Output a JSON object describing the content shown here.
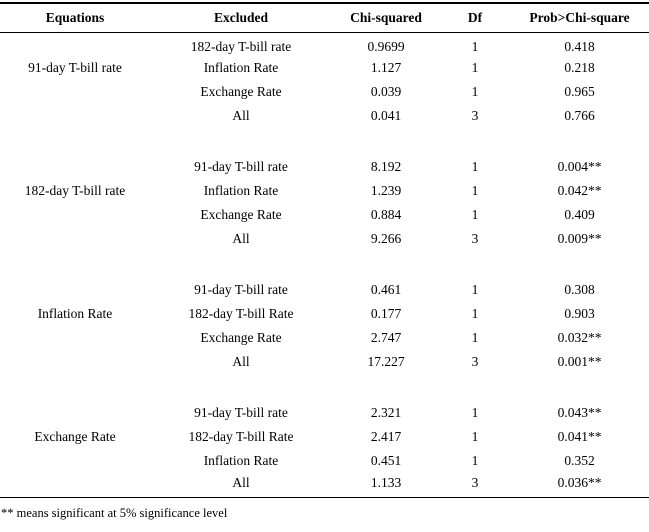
{
  "table": {
    "columns": [
      "Equations",
      "Excluded",
      "Chi-squared",
      "Df",
      "Prob>Chi-square"
    ],
    "blocks": [
      {
        "equation": "91-day T-bill rate",
        "rows": [
          {
            "excluded": "182-day T-bill rate",
            "chi_squared": "0.9699",
            "df": "1",
            "prob": "0.418"
          },
          {
            "excluded": "Inflation Rate",
            "chi_squared": "1.127",
            "df": "1",
            "prob": "0.218"
          },
          {
            "excluded": "Exchange Rate",
            "chi_squared": "0.039",
            "df": "1",
            "prob": "0.965"
          },
          {
            "excluded": "All",
            "chi_squared": "0.041",
            "df": "3",
            "prob": "0.766"
          }
        ]
      },
      {
        "equation": "182-day T-bill rate",
        "rows": [
          {
            "excluded": "91-day T-bill rate",
            "chi_squared": "8.192",
            "df": "1",
            "prob": "0.004**"
          },
          {
            "excluded": "Inflation Rate",
            "chi_squared": "1.239",
            "df": "1",
            "prob": "0.042**"
          },
          {
            "excluded": "Exchange Rate",
            "chi_squared": "0.884",
            "df": "1",
            "prob": "0.409"
          },
          {
            "excluded": "All",
            "chi_squared": "9.266",
            "df": "3",
            "prob": "0.009**"
          }
        ]
      },
      {
        "equation": "Inflation Rate",
        "rows": [
          {
            "excluded": "91-day T-bill rate",
            "chi_squared": "0.461",
            "df": "1",
            "prob": "0.308"
          },
          {
            "excluded": "182-day T-bill Rate",
            "chi_squared": "0.177",
            "df": "1",
            "prob": "0.903"
          },
          {
            "excluded": "Exchange Rate",
            "chi_squared": "2.747",
            "df": "1",
            "prob": "0.032**"
          },
          {
            "excluded": "All",
            "chi_squared": "17.227",
            "df": "3",
            "prob": "0.001**"
          }
        ]
      },
      {
        "equation": "Exchange Rate",
        "rows": [
          {
            "excluded": "91-day T-bill rate",
            "chi_squared": "2.321",
            "df": "1",
            "prob": "0.043**"
          },
          {
            "excluded": "182-day T-bill Rate",
            "chi_squared": "2.417",
            "df": "1",
            "prob": "0.041**"
          },
          {
            "excluded": "Inflation Rate",
            "chi_squared": "0.451",
            "df": "1",
            "prob": "0.352"
          },
          {
            "excluded": "All",
            "chi_squared": "1.133",
            "df": "3",
            "prob": "0.036**"
          }
        ]
      }
    ],
    "footnote": "** means significant at 5% significance level"
  }
}
